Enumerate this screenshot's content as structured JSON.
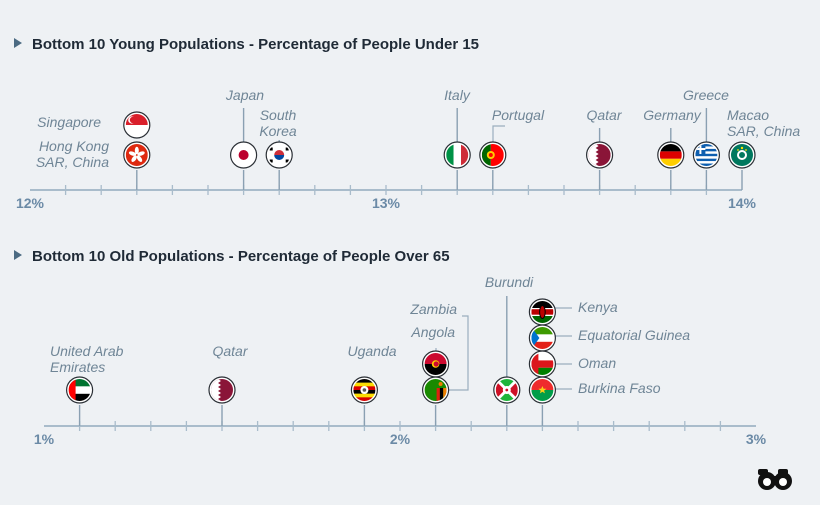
{
  "colors": {
    "background": "#eef1f4",
    "axis": "#a9bccb",
    "tick_label": "#6b8aa6",
    "country_label": "#6f8596",
    "title": "#1f2a36"
  },
  "logo": {
    "icon": "binoculars-icon"
  },
  "chart_data": [
    {
      "type": "scatter",
      "title": "Bottom 10 Young Populations - Percentage of People Under 15",
      "xlim": [
        12,
        14
      ],
      "ticks": [
        {
          "value": 12,
          "label": "12%"
        },
        {
          "value": 13,
          "label": "13%"
        },
        {
          "value": 14,
          "label": "14%"
        }
      ],
      "points": [
        {
          "name": "Singapore",
          "value": 12.3,
          "flag": "singapore",
          "stack": 1
        },
        {
          "name": "Hong Kong SAR, China",
          "value": 12.3,
          "flag": "hongkong",
          "stack": 0
        },
        {
          "name": "Japan",
          "value": 12.6,
          "flag": "japan",
          "stack": 0
        },
        {
          "name": "South Korea",
          "value": 12.7,
          "flag": "southkorea",
          "stack": 0
        },
        {
          "name": "Italy",
          "value": 13.2,
          "flag": "italy",
          "stack": 0
        },
        {
          "name": "Portugal",
          "value": 13.3,
          "flag": "portugal",
          "stack": 0
        },
        {
          "name": "Qatar",
          "value": 13.6,
          "flag": "qatar",
          "stack": 0
        },
        {
          "name": "Germany",
          "value": 13.8,
          "flag": "germany",
          "stack": 0
        },
        {
          "name": "Greece",
          "value": 13.9,
          "flag": "greece",
          "stack": 0
        },
        {
          "name": "Macao SAR, China",
          "value": 14.0,
          "flag": "macao",
          "stack": 0
        }
      ]
    },
    {
      "type": "scatter",
      "title": "Bottom 10 Old Populations - Percentage of People Over 65",
      "xlim": [
        1,
        3
      ],
      "ticks": [
        {
          "value": 1,
          "label": "1%"
        },
        {
          "value": 2,
          "label": "2%"
        },
        {
          "value": 3,
          "label": "3%"
        }
      ],
      "points": [
        {
          "name": "United Arab Emirates",
          "value": 1.1,
          "flag": "uae",
          "stack": 0
        },
        {
          "name": "Qatar",
          "value": 1.5,
          "flag": "qatar",
          "stack": 0
        },
        {
          "name": "Uganda",
          "value": 1.9,
          "flag": "uganda",
          "stack": 0
        },
        {
          "name": "Angola",
          "value": 2.1,
          "flag": "angola",
          "stack": 1
        },
        {
          "name": "Zambia",
          "value": 2.1,
          "flag": "zambia",
          "stack": 0
        },
        {
          "name": "Burundi",
          "value": 2.3,
          "flag": "burundi",
          "stack": 0
        },
        {
          "name": "Kenya",
          "value": 2.4,
          "flag": "kenya",
          "stack": 3
        },
        {
          "name": "Equatorial Guinea",
          "value": 2.4,
          "flag": "eqguinea",
          "stack": 2
        },
        {
          "name": "Oman",
          "value": 2.4,
          "flag": "oman",
          "stack": 1
        },
        {
          "name": "Burkina Faso",
          "value": 2.4,
          "flag": "burkina",
          "stack": 0
        }
      ]
    }
  ]
}
